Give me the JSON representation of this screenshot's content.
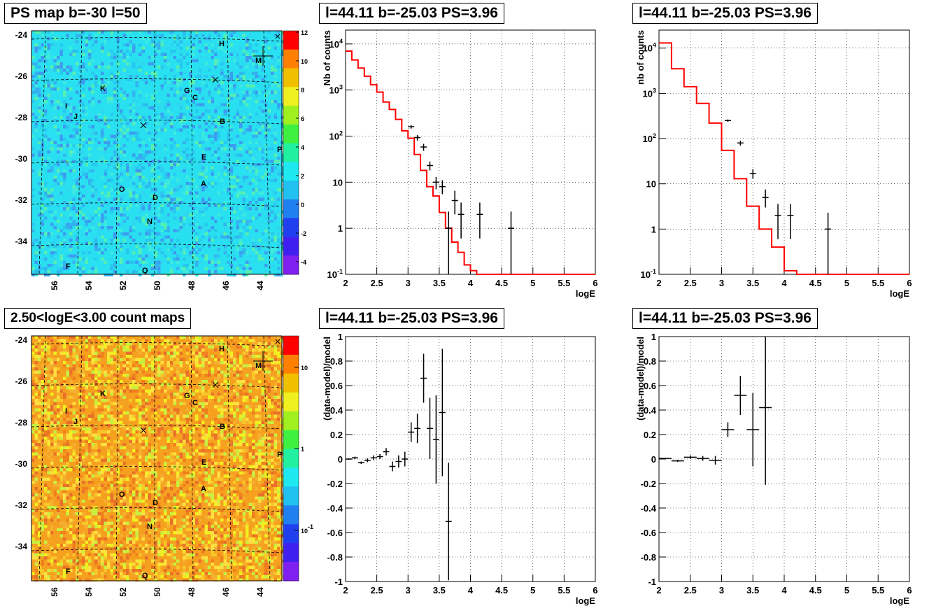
{
  "panels": {
    "map_top_title": "PS map b=-30 l=50",
    "map_bottom_title": "2.50<logE<3.00 count maps",
    "spec1_title": "l=44.11 b=-25.03 PS=3.96",
    "spec2_title": "l=44.11 b=-25.03 PS=3.96",
    "res1_title": "l=44.11 b=-25.03 PS=3.96",
    "res2_title": "l=44.11 b=-25.03 PS=3.96"
  },
  "maps": {
    "y_ticks": [
      "-24",
      "-26",
      "-28",
      "-30",
      "-32",
      "-34"
    ],
    "x_ticks": [
      "56",
      "54",
      "52",
      "50",
      "48",
      "46",
      "44"
    ],
    "source_labels": [
      "H",
      "M",
      "K",
      "G",
      "C",
      "I",
      "J",
      "B",
      "E",
      "P",
      "A",
      "O",
      "D",
      "N",
      "F",
      "Q"
    ],
    "top_colorbar_ticks": [
      "12",
      "10",
      "8",
      "6",
      "4",
      "2",
      "0",
      "-2",
      "-4"
    ],
    "bottom_colorbar_ticks": [
      "10",
      "1",
      "10-1"
    ],
    "colors": {
      "top_background": "#29e0f0",
      "top_patch": "#3c9cf0",
      "bottom_background": "#f6a020",
      "bottom_patch": "#f0f020"
    }
  },
  "chart_data": [
    {
      "type": "line",
      "title": "l=44.11 b=-25.03 PS=3.96",
      "xlabel": "logE",
      "ylabel": "Nb of counts",
      "xlim": [
        2,
        6
      ],
      "ylim": [
        0.1,
        20000
      ],
      "yscale": "log",
      "x_ticks": [
        "2",
        "2.5",
        "3",
        "3.5",
        "4",
        "4.5",
        "5",
        "5.5",
        "6"
      ],
      "y_ticks": [
        "10-1",
        "1",
        "10",
        "102",
        "103",
        "104"
      ],
      "model_color": "#ff0000",
      "model_steps": {
        "edges": [
          2.0,
          2.1,
          2.2,
          2.3,
          2.4,
          2.5,
          2.6,
          2.7,
          2.8,
          2.9,
          3.0,
          3.1,
          3.2,
          3.3,
          3.4,
          3.5,
          3.6,
          3.7,
          3.8,
          3.9,
          4.0,
          4.1,
          4.2,
          6.0
        ],
        "values": [
          7000,
          4500,
          3000,
          2000,
          1300,
          900,
          550,
          380,
          230,
          130,
          90,
          40,
          18,
          8,
          5,
          2.2,
          1.0,
          0.5,
          0.3,
          0.16,
          0.12,
          0.1,
          0.1
        ]
      },
      "data_points": [
        {
          "x": 3.05,
          "y": 160,
          "ylo": 145,
          "yhi": 175
        },
        {
          "x": 3.15,
          "y": 93,
          "ylo": 80,
          "yhi": 105
        },
        {
          "x": 3.25,
          "y": 58,
          "ylo": 48,
          "yhi": 68
        },
        {
          "x": 3.35,
          "y": 23,
          "ylo": 18,
          "yhi": 28
        },
        {
          "x": 3.45,
          "y": 10,
          "ylo": 7,
          "yhi": 13
        },
        {
          "x": 3.55,
          "y": 8,
          "ylo": 5.5,
          "yhi": 11
        },
        {
          "x": 3.65,
          "y": 1,
          "ylo": 0.1,
          "yhi": 2.3
        },
        {
          "x": 3.75,
          "y": 4,
          "ylo": 2,
          "yhi": 6.5
        },
        {
          "x": 3.85,
          "y": 2,
          "ylo": 0.6,
          "yhi": 3.6
        },
        {
          "x": 4.15,
          "y": 2,
          "ylo": 0.6,
          "yhi": 3.6
        },
        {
          "x": 4.65,
          "y": 1,
          "ylo": 0.1,
          "yhi": 2.3
        }
      ]
    },
    {
      "type": "line",
      "title": "l=44.11 b=-25.03 PS=3.96",
      "xlabel": "logE",
      "ylabel": "nb of counts",
      "xlim": [
        2,
        6
      ],
      "ylim": [
        0.1,
        25000
      ],
      "yscale": "log",
      "x_ticks": [
        "2",
        "2.5",
        "3",
        "3.5",
        "4",
        "4.5",
        "5",
        "5.5",
        "6"
      ],
      "y_ticks": [
        "10-1",
        "1",
        "10",
        "102",
        "103",
        "104"
      ],
      "model_color": "#ff0000",
      "model_steps": {
        "edges": [
          2.0,
          2.2,
          2.4,
          2.6,
          2.8,
          3.0,
          3.2,
          3.4,
          3.6,
          3.8,
          4.0,
          4.2,
          4.4,
          6.0
        ],
        "values": [
          13000,
          3500,
          1400,
          600,
          220,
          55,
          13,
          3.2,
          1.0,
          0.4,
          0.12,
          0.1,
          0.1
        ]
      },
      "data_points": [
        {
          "x": 3.1,
          "y": 250,
          "ylo": 235,
          "yhi": 265
        },
        {
          "x": 3.3,
          "y": 80,
          "ylo": 70,
          "yhi": 90
        },
        {
          "x": 3.5,
          "y": 17,
          "ylo": 13,
          "yhi": 21
        },
        {
          "x": 3.7,
          "y": 5,
          "ylo": 3,
          "yhi": 7.5
        },
        {
          "x": 3.9,
          "y": 2,
          "ylo": 0.6,
          "yhi": 3.6
        },
        {
          "x": 4.1,
          "y": 2,
          "ylo": 0.6,
          "yhi": 3.6
        },
        {
          "x": 4.7,
          "y": 1,
          "ylo": 0.1,
          "yhi": 2.3
        }
      ]
    },
    {
      "type": "scatter",
      "title": "l=44.11 b=-25.03 PS=3.96",
      "xlabel": "logE",
      "ylabel": "(data-model)/model",
      "xlim": [
        2,
        6
      ],
      "ylim": [
        -1,
        1
      ],
      "x_ticks": [
        "2",
        "2.5",
        "3",
        "3.5",
        "4",
        "4.5",
        "5",
        "5.5",
        "6"
      ],
      "y_ticks": [
        "-1",
        "-0.8",
        "-0.6",
        "-0.4",
        "-0.2",
        "0",
        "0.2",
        "0.4",
        "0.6",
        "0.8",
        "1"
      ],
      "points": [
        {
          "x": 2.05,
          "y": 0.0,
          "err": 0.005
        },
        {
          "x": 2.15,
          "y": 0.01,
          "err": 0.01
        },
        {
          "x": 2.25,
          "y": -0.03,
          "err": 0.01
        },
        {
          "x": 2.35,
          "y": -0.01,
          "err": 0.015
        },
        {
          "x": 2.45,
          "y": 0.01,
          "err": 0.02
        },
        {
          "x": 2.55,
          "y": 0.02,
          "err": 0.02
        },
        {
          "x": 2.65,
          "y": 0.06,
          "err": 0.03
        },
        {
          "x": 2.75,
          "y": -0.06,
          "err": 0.04
        },
        {
          "x": 2.85,
          "y": -0.02,
          "err": 0.05
        },
        {
          "x": 2.95,
          "y": 0.0,
          "err": 0.06
        },
        {
          "x": 3.05,
          "y": 0.22,
          "err": 0.08
        },
        {
          "x": 3.15,
          "y": 0.25,
          "err": 0.12
        },
        {
          "x": 3.25,
          "y": 0.66,
          "err": 0.2
        },
        {
          "x": 3.35,
          "y": 0.25,
          "err": 0.25
        },
        {
          "x": 3.45,
          "y": 0.16,
          "err": 0.36
        },
        {
          "x": 3.55,
          "y": 0.38,
          "err": 0.52
        },
        {
          "x": 3.65,
          "y": -0.51,
          "err": 0.48
        }
      ]
    },
    {
      "type": "scatter",
      "title": "l=44.11 b=-25.03 PS=3.96",
      "xlabel": "logE",
      "ylabel": "(data-model)/model",
      "xlim": [
        2,
        6
      ],
      "ylim": [
        -1,
        1
      ],
      "x_ticks": [
        "2",
        "2.5",
        "3",
        "3.5",
        "4",
        "4.5",
        "5",
        "5.5",
        "6"
      ],
      "y_ticks": [
        "-1",
        "-0.8",
        "-0.6",
        "-0.4",
        "-0.2",
        "0",
        "0.2",
        "0.4",
        "0.6",
        "0.8",
        "1"
      ],
      "points": [
        {
          "x": 2.1,
          "y": 0.005,
          "err": 0.005
        },
        {
          "x": 2.3,
          "y": -0.015,
          "err": 0.008
        },
        {
          "x": 2.5,
          "y": 0.015,
          "err": 0.015
        },
        {
          "x": 2.7,
          "y": 0.005,
          "err": 0.02
        },
        {
          "x": 2.9,
          "y": -0.01,
          "err": 0.035
        },
        {
          "x": 3.1,
          "y": 0.24,
          "err": 0.06
        },
        {
          "x": 3.3,
          "y": 0.52,
          "err": 0.16
        },
        {
          "x": 3.5,
          "y": 0.24,
          "err": 0.3
        },
        {
          "x": 3.7,
          "y": 0.42,
          "err": 0.63
        }
      ]
    }
  ]
}
